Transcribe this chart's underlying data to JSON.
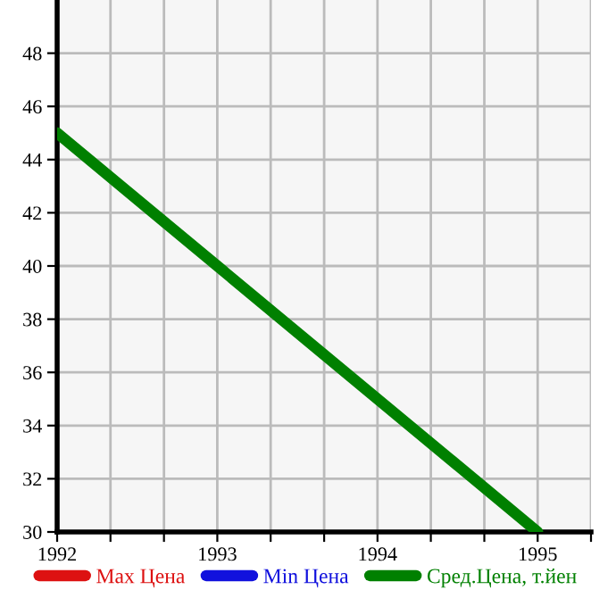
{
  "chart_data": {
    "type": "line",
    "x": [
      1992,
      1995
    ],
    "series": [
      {
        "name": "Max Цена",
        "color": "#dd1111",
        "values": [
          null,
          null
        ]
      },
      {
        "name": "Min Цена",
        "color": "#1111dd",
        "values": [
          null,
          null
        ]
      },
      {
        "name": "Сред.Цена, т.йен",
        "color": "#008000",
        "values": [
          45,
          30
        ]
      }
    ],
    "xlim": [
      1992,
      1995.333
    ],
    "xticks": [
      1992,
      {
        "value": 1992.333,
        "label": null
      },
      {
        "value": 1992.667,
        "label": null
      },
      1993,
      {
        "value": 1993.333,
        "label": null
      },
      {
        "value": 1993.667,
        "label": null
      },
      1994,
      {
        "value": 1994.333,
        "label": null
      },
      {
        "value": 1994.667,
        "label": null
      },
      1995,
      {
        "value": 1995.333,
        "label": null
      }
    ],
    "ylim": [
      30,
      50
    ],
    "yticks": [
      30,
      32,
      34,
      36,
      38,
      40,
      42,
      44,
      46,
      48
    ],
    "grid": true,
    "legend": "bottom",
    "marker": "none",
    "line_style": "solid"
  }
}
